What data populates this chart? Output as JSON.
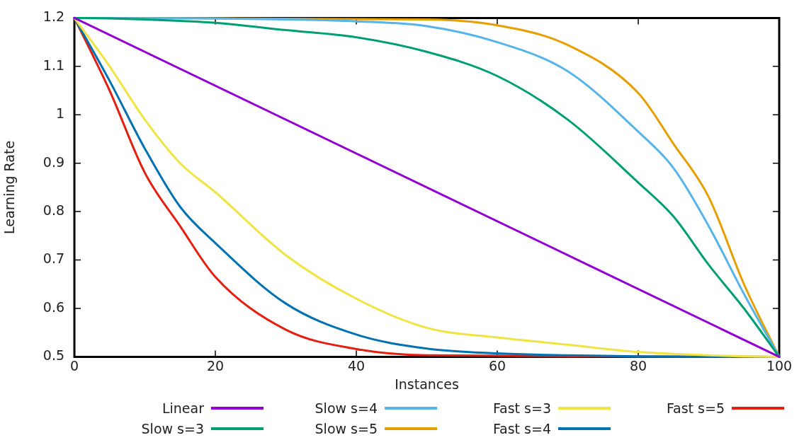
{
  "chart_data": {
    "type": "line",
    "xlabel": "Instances",
    "ylabel": "Learning Rate",
    "xlim": [
      0,
      100
    ],
    "xticks": [
      0,
      20,
      40,
      60,
      80,
      100
    ],
    "ylim": [
      0.5,
      1.2
    ],
    "yticks": [
      0.5,
      0.6,
      0.7,
      0.8,
      0.9,
      1,
      1.1,
      1.2
    ],
    "grid": false,
    "legend": "bottom",
    "marker": "none",
    "line_style": "solid",
    "x": [
      0,
      5,
      10,
      15,
      20,
      30,
      40,
      50,
      60,
      70,
      80,
      85,
      90,
      95,
      100
    ],
    "series": [
      {
        "name": "Linear",
        "color": "#9400d3",
        "x": [
          0,
          100
        ],
        "values": [
          1.2,
          0.5
        ]
      },
      {
        "name": "Slow s=3",
        "color": "#009e73",
        "values": [
          1.2,
          1.199,
          1.197,
          1.194,
          1.19,
          1.175,
          1.16,
          1.13,
          1.08,
          0.99,
          0.86,
          0.79,
          0.69,
          0.6,
          0.5
        ]
      },
      {
        "name": "Slow s=4",
        "color": "#56b4e9",
        "x": [
          0,
          20,
          30,
          40,
          50,
          60,
          70,
          80,
          85,
          90,
          95,
          100
        ],
        "values": [
          1.2,
          1.199,
          1.197,
          1.193,
          1.183,
          1.15,
          1.09,
          0.965,
          0.89,
          0.77,
          0.63,
          0.5
        ]
      },
      {
        "name": "Slow s=5",
        "color": "#e69f00",
        "x": [
          0,
          50,
          60,
          70,
          80,
          85,
          90,
          95,
          100
        ],
        "values": [
          1.2,
          1.197,
          1.185,
          1.144,
          1.045,
          0.94,
          0.83,
          0.65,
          0.5
        ]
      },
      {
        "name": "Fast s=3",
        "color": "#f0e442",
        "values": [
          1.2,
          1.1,
          0.99,
          0.9,
          0.84,
          0.71,
          0.62,
          0.56,
          0.54,
          0.525,
          0.51,
          0.506,
          0.503,
          0.501,
          0.5
        ]
      },
      {
        "name": "Fast s=4",
        "color": "#0072b2",
        "x": [
          0,
          5,
          10,
          15,
          20,
          30,
          40,
          50,
          60,
          70,
          80,
          100
        ],
        "values": [
          1.2,
          1.07,
          0.93,
          0.81,
          0.735,
          0.61,
          0.546,
          0.517,
          0.507,
          0.503,
          0.501,
          0.5
        ]
      },
      {
        "name": "Fast s=5",
        "color": "#e51e10",
        "x": [
          0,
          5,
          10,
          15,
          20,
          30,
          40,
          50,
          100
        ],
        "values": [
          1.2,
          1.05,
          0.88,
          0.77,
          0.665,
          0.556,
          0.516,
          0.503,
          0.5
        ]
      }
    ]
  }
}
